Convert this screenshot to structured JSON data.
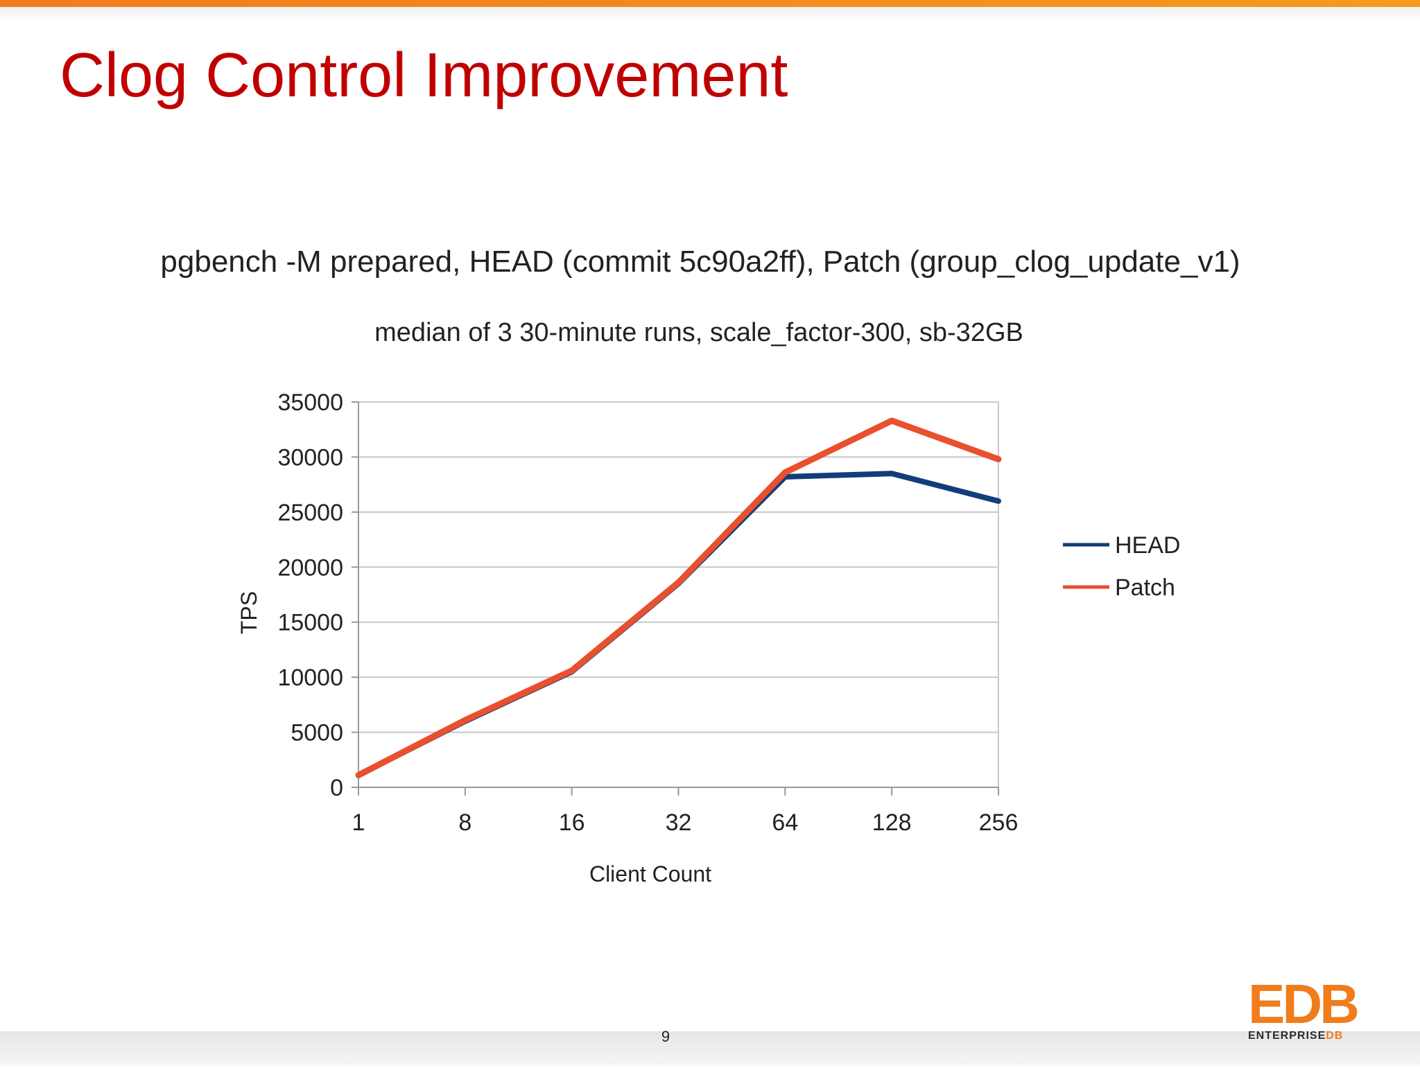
{
  "slide": {
    "title": "Clog Control Improvement",
    "page_number": "9"
  },
  "brand": {
    "logo_text": "EDB",
    "logo_sub_enterprise": "ENTERPRISE",
    "logo_sub_db": "DB",
    "accent_color": "#f07c1c",
    "title_color": "#c00000"
  },
  "chart_data": {
    "type": "line",
    "title": "pgbench -M prepared, HEAD (commit 5c90a2ff), Patch (group_clog_update_v1)",
    "subtitle": "median of 3 30-minute runs, scale_factor-300, sb-32GB",
    "xlabel": "Client Count",
    "ylabel": "TPS",
    "categories": [
      "1",
      "8",
      "16",
      "32",
      "64",
      "128",
      "256"
    ],
    "ylim": [
      0,
      35000
    ],
    "yticks": [
      0,
      5000,
      10000,
      15000,
      20000,
      25000,
      30000,
      35000
    ],
    "grid": true,
    "legend_position": "right",
    "series": [
      {
        "name": "HEAD",
        "color": "#123d7a",
        "values": [
          1100,
          6000,
          10500,
          18500,
          28200,
          28500,
          26000
        ]
      },
      {
        "name": "Patch",
        "color": "#e8502e",
        "values": [
          1100,
          6100,
          10600,
          18600,
          28600,
          33300,
          29800
        ]
      }
    ]
  }
}
